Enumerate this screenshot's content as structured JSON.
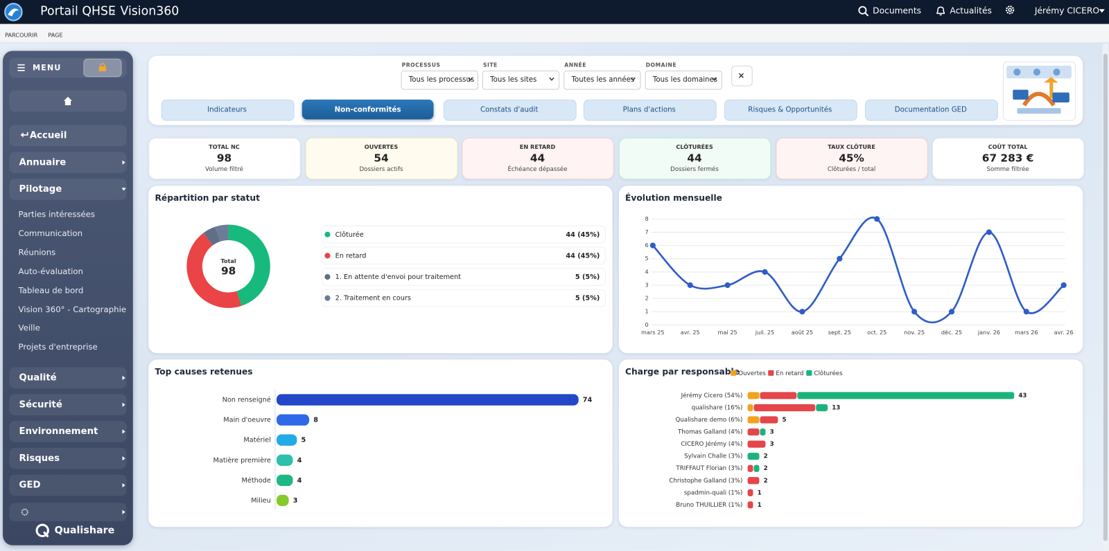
{
  "header": {
    "title": "Portail QHSE",
    "separator": "›",
    "page": "Vision360",
    "nav": [
      "Documents",
      "Actualités"
    ],
    "user": "Jérémy CICERO"
  },
  "subnav": [
    "PARCOURIR",
    "PAGE"
  ],
  "sidebar": {
    "menu": "MENU",
    "home": "Accueil",
    "sections": [
      {
        "label": "Annuaire"
      },
      {
        "label": "Pilotage",
        "items": [
          "Parties intéressées",
          "Communication",
          "Réunions",
          "Auto-évaluation",
          "Tableau de bord",
          "Vision 360° - Cartographie",
          "Veille",
          "Projets d'entreprise"
        ]
      },
      {
        "label": "Qualité"
      },
      {
        "label": "Sécurité"
      },
      {
        "label": "Environnement"
      },
      {
        "label": "Risques"
      },
      {
        "label": "GED"
      }
    ],
    "brand": "Qualishare"
  },
  "filters": [
    {
      "label": "PROCESSUS",
      "value": "Tous les processus"
    },
    {
      "label": "SITE",
      "value": "Tous les sites"
    },
    {
      "label": "ANNÉE",
      "value": "Toutes les années"
    },
    {
      "label": "DOMAINE",
      "value": "Tous les domaines"
    }
  ],
  "tabs": {
    "items": [
      "Indicateurs",
      "Non-conformités",
      "Constats d'audit",
      "Plans d'actions",
      "Risques & Opportunités",
      "Documentation GED"
    ],
    "active": 1
  },
  "kpis": [
    {
      "label": "TOTAL NC",
      "value": "98",
      "note": "Volume filtré"
    },
    {
      "label": "OUVERTES",
      "value": "54",
      "note": "Dossiers actifs"
    },
    {
      "label": "EN RETARD",
      "value": "44",
      "note": "Échéance dépassée"
    },
    {
      "label": "CLÔTURÉES",
      "value": "44",
      "note": "Dossiers fermés"
    },
    {
      "label": "TAUX CLÔTURE",
      "value": "45%",
      "note": "Clôturées / total"
    },
    {
      "label": "COÛT TOTAL",
      "value": "67 283 €",
      "note": "Somme filtrée"
    }
  ],
  "status_chart": {
    "type": "donut",
    "title": "Répartition par statut",
    "center_label": "Total",
    "total": 98,
    "categories": [
      "Clôturée",
      "En retard",
      "1. En attente d'envoi pour traitement",
      "2. Traitement en cours"
    ],
    "values": [
      44,
      44,
      5,
      5
    ],
    "value_labels": [
      "44 (45%)",
      "44 (45%)",
      "5 (5%)",
      "5 (5%)"
    ],
    "colors": [
      "#17b97c",
      "#ea4446",
      "#5f6f86",
      "#6b7c96"
    ]
  },
  "monthly_chart": {
    "type": "line",
    "title": "Évolution mensuelle",
    "categories": [
      "mars 25",
      "avr. 25",
      "mai 25",
      "juil. 25",
      "août 25",
      "sept. 25",
      "oct. 25",
      "nov. 25",
      "déc. 25",
      "janv. 26",
      "mars 26",
      "avr. 26"
    ],
    "values": [
      6,
      3,
      3,
      4,
      1,
      5,
      8,
      1,
      1,
      7,
      1,
      3
    ],
    "color": "#2f5cc8",
    "ylim": [
      0,
      8
    ],
    "yticks": [
      0,
      1,
      2,
      3,
      4,
      5,
      6,
      7,
      8
    ],
    "grid": true
  },
  "causes_chart": {
    "type": "bar",
    "orientation": "horizontal",
    "title": "Top causes retenues",
    "categories": [
      "Non renseigné",
      "Main d'oeuvre",
      "Matériel",
      "Matière première",
      "Méthode",
      "Milieu"
    ],
    "values": [
      74,
      8,
      5,
      4,
      4,
      3
    ],
    "colors": [
      "#2347c8",
      "#2f68e8",
      "#22abe6",
      "#2cc0ad",
      "#1db883",
      "#86c92a"
    ]
  },
  "load_chart": {
    "type": "bar",
    "orientation": "horizontal",
    "stacked": true,
    "title": "Charge par responsable",
    "categories": [
      "Jérémy Cicero (54%)",
      "qualishare (16%)",
      "Qualishare demo (6%)",
      "Thomas Galland (4%)",
      "CICERO Jérémy (4%)",
      "Sylvain Challe (3%)",
      "TRIFFAUT Florian (3%)",
      "Christophe Galland (3%)",
      "spadmin-quali (1%)",
      "Bruno THUILLIER (1%)"
    ],
    "series": [
      {
        "name": "Ouvertes",
        "color": "#f2a31e",
        "values": [
          2,
          1,
          2,
          0,
          0,
          0,
          0,
          0,
          0,
          0
        ]
      },
      {
        "name": "En retard",
        "color": "#e4464b",
        "values": [
          6,
          10,
          3,
          2,
          3,
          0,
          1,
          2,
          1,
          1
        ]
      },
      {
        "name": "Clôturées",
        "color": "#1bb37b",
        "values": [
          35,
          2,
          0,
          1,
          0,
          2,
          1,
          0,
          0,
          0
        ]
      }
    ],
    "totals": [
      43,
      13,
      5,
      3,
      3,
      2,
      2,
      2,
      1,
      1
    ]
  }
}
